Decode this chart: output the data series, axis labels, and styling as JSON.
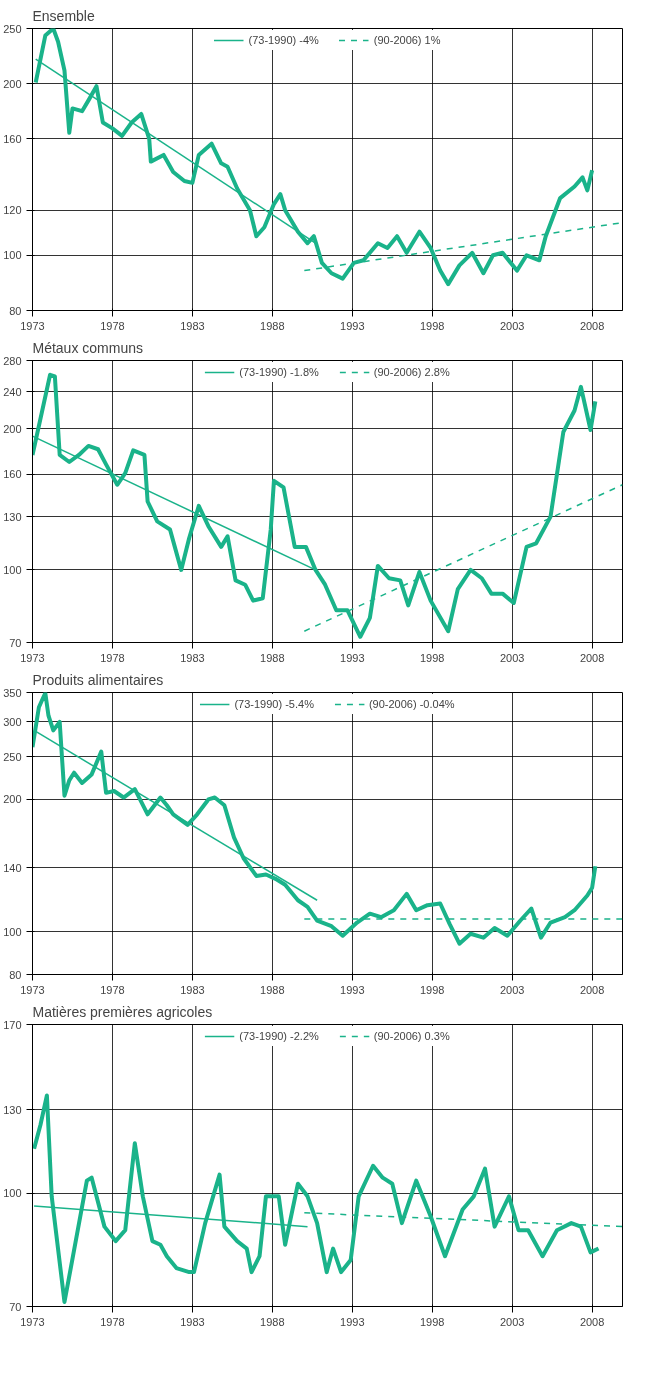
{
  "chart_data": [
    {
      "type": "line",
      "title": "Ensemble",
      "log": "y",
      "grid": true,
      "legend": "top",
      "marker": "none",
      "xlim": [
        1973,
        2009.9
      ],
      "xticks": [
        1973,
        1978,
        1983,
        1988,
        1993,
        1998,
        2003,
        2008
      ],
      "ylim": [
        80,
        250
      ],
      "yticks": [
        80,
        100,
        120,
        160,
        200,
        250
      ],
      "series": [
        {
          "color": "#1ab38a",
          "line_style": "solid",
          "x": [
            1973.2,
            1973.8,
            1974.3,
            1974.6,
            1975.0,
            1975.3,
            1975.5,
            1976.1,
            1976.5,
            1977.0,
            1977.4,
            1978.0,
            1978.6,
            1979.2,
            1979.8,
            1980.3,
            1980.4,
            1981.2,
            1981.8,
            1982.5,
            1983.0,
            1983.4,
            1984.2,
            1984.8,
            1985.2,
            1985.8,
            1986.6,
            1987.0,
            1987.5,
            1988.1,
            1988.5,
            1988.8,
            1989.6,
            1990.2,
            1990.6,
            1991.1,
            1991.7,
            1992.4,
            1993.1,
            1993.7,
            1994.6,
            1995.2,
            1995.8,
            1996.4,
            1997.2,
            1997.9,
            1998.5,
            1999.0,
            1999.7,
            2000.5,
            2001.2,
            2001.8,
            2002.4,
            2003.3,
            2003.9,
            2004.7,
            2005.1,
            2006.0,
            2006.9,
            2007.4,
            2007.7,
            2008.0
          ],
          "values": [
            201,
            243,
            250,
            237,
            211,
            164,
            181,
            179,
            187,
            198,
            171,
            167,
            162,
            171,
            177,
            160,
            146,
            150,
            140,
            135,
            134,
            150,
            157,
            145,
            143,
            131,
            120,
            108,
            112,
            123,
            128,
            120,
            110,
            105,
            108,
            97,
            93,
            91,
            97,
            98,
            105,
            103,
            108,
            101,
            110,
            103,
            94,
            89,
            96,
            101,
            93,
            100,
            101,
            94,
            100,
            98,
            108,
            126,
            132,
            137,
            130,
            141
          ]
        },
        {
          "name": "(73-1990) -4%",
          "color": "#1ab38a",
          "line_style": "solid",
          "x": [
            1973.2,
            1990.7
          ],
          "values": [
            221,
            105
          ]
        },
        {
          "name": "(90-2006) 1%",
          "color": "#1ab38a",
          "line_style": "dashed",
          "x": [
            1990.0,
            2009.8
          ],
          "values": [
            94,
            114
          ]
        }
      ]
    },
    {
      "type": "line",
      "title": "Métaux communs",
      "log": "y",
      "grid": true,
      "legend": "top",
      "marker": "none",
      "xlim": [
        1973,
        2009.9
      ],
      "xticks": [
        1973,
        1978,
        1983,
        1988,
        1993,
        1998,
        2003,
        2008
      ],
      "ylim": [
        70,
        280
      ],
      "yticks": [
        70,
        100,
        130,
        160,
        200,
        240,
        280
      ],
      "series": [
        {
          "color": "#1ab38a",
          "line_style": "solid",
          "x": [
            1973.0,
            1974.1,
            1974.4,
            1974.7,
            1975.3,
            1975.9,
            1976.5,
            1977.1,
            1977.6,
            1978.3,
            1978.8,
            1979.3,
            1980.0,
            1980.2,
            1980.8,
            1981.6,
            1981.9,
            1982.3,
            1982.8,
            1983.4,
            1984.0,
            1984.8,
            1985.2,
            1985.7,
            1986.3,
            1986.8,
            1987.4,
            1987.9,
            1988.1,
            1988.7,
            1989.4,
            1990.1,
            1990.7,
            1991.3,
            1992.0,
            1992.7,
            1993.5,
            1994.1,
            1994.6,
            1995.3,
            1996.0,
            1996.5,
            1997.2,
            1997.9,
            1999.0,
            1999.6,
            2000.4,
            2001.1,
            2001.7,
            2002.4,
            2003.1,
            2003.9,
            2004.5,
            2005.4,
            2006.2,
            2006.9,
            2007.3,
            2007.9,
            2008.2
          ],
          "values": [
            176,
            261,
            259,
            176,
            170,
            176,
            184,
            181,
            168,
            152,
            161,
            180,
            176,
            140,
            127,
            122,
            112,
            100,
            117,
            137,
            124,
            112,
            118,
            95,
            93,
            86,
            87,
            122,
            155,
            150,
            112,
            112,
            100,
            93,
            82,
            82,
            72,
            79,
            102,
            96,
            95,
            84,
            99,
            86,
            74,
            91,
            100,
            96,
            89,
            89,
            85,
            112,
            114,
            130,
            197,
            219,
            246,
            199,
            229
          ]
        },
        {
          "name": "(73-1990) -1.8%",
          "color": "#1ab38a",
          "line_style": "solid",
          "x": [
            1973.0,
            1990.7
          ],
          "values": [
            193,
            100
          ]
        },
        {
          "name": "(90-2006) 2.8%",
          "color": "#1ab38a",
          "line_style": "dashed",
          "x": [
            1990.0,
            2009.9
          ],
          "values": [
            74,
            152
          ]
        }
      ]
    },
    {
      "type": "line",
      "title": "Produits alimentaires",
      "log": "y",
      "grid": true,
      "legend": "top",
      "marker": "none",
      "xlim": [
        1973,
        2009.9
      ],
      "xticks": [
        1973,
        1978,
        1983,
        1988,
        1993,
        1998,
        2003,
        2008
      ],
      "ylim": [
        80,
        350
      ],
      "yticks": [
        80,
        100,
        140,
        200,
        250,
        300,
        350
      ],
      "series": [
        {
          "color": "#1ab38a",
          "line_style": "solid",
          "x": [
            1973.0,
            1973.4,
            1973.8,
            1974.0,
            1974.3,
            1974.7,
            1975.0,
            1975.3,
            1975.6,
            1976.1,
            1976.7,
            1977.3,
            1977.6,
            1978.1,
            1978.7,
            1979.4,
            1980.2,
            1981.0,
            1981.4,
            1981.8,
            1982.7,
            1983.3,
            1984.0,
            1984.4,
            1985.0,
            1985.6,
            1986.2,
            1987.0,
            1987.6,
            1988.2,
            1988.8,
            1989.6,
            1990.2,
            1990.8,
            1991.7,
            1992.4,
            1993.3,
            1994.1,
            1994.8,
            1995.6,
            1996.4,
            1997.0,
            1997.7,
            1998.5,
            1999.1,
            1999.7,
            2000.4,
            2001.2,
            2001.9,
            2002.7,
            2003.5,
            2004.2,
            2004.8,
            2005.4,
            2006.3,
            2006.9,
            2007.7,
            2008.0,
            2008.2
          ],
          "values": [
            263,
            324,
            349,
            310,
            287,
            300,
            204,
            221,
            230,
            218,
            228,
            257,
            207,
            209,
            202,
            211,
            185,
            202,
            194,
            185,
            175,
            185,
            200,
            202,
            194,
            164,
            147,
            134,
            135,
            132,
            128,
            118,
            114,
            106,
            103,
            98,
            105,
            110,
            108,
            112,
            122,
            112,
            115,
            116,
            104,
            94,
            99,
            97,
            102,
            98,
            106,
            113,
            97,
            105,
            108,
            112,
            121,
            126,
            141
          ]
        },
        {
          "name": "(73-1990) -5.4%",
          "color": "#1ab38a",
          "line_style": "solid",
          "x": [
            1973.1,
            1990.8
          ],
          "values": [
            287,
            118
          ]
        },
        {
          "name": "(90-2006) -0.04%",
          "color": "#1ab38a",
          "line_style": "dashed",
          "x": [
            1990.0,
            2009.9
          ],
          "values": [
            107,
            107
          ]
        }
      ]
    },
    {
      "type": "line",
      "title": "Matières premières agricoles",
      "log": "y",
      "grid": true,
      "legend": "top",
      "marker": "none",
      "xlim": [
        1973,
        2009.9
      ],
      "xticks": [
        1973,
        1978,
        1983,
        1988,
        1993,
        1998,
        2003,
        2008
      ],
      "ylim": [
        70,
        170
      ],
      "yticks": [
        70,
        100,
        130,
        170
      ],
      "series": [
        {
          "color": "#1ab38a",
          "line_style": "solid",
          "x": [
            1973.1,
            1973.5,
            1973.9,
            1974.2,
            1975.0,
            1975.3,
            1976.4,
            1976.7,
            1977.5,
            1978.2,
            1978.8,
            1979.4,
            1979.9,
            1980.5,
            1981.0,
            1981.4,
            1982.0,
            1982.8,
            1983.1,
            1983.8,
            1984.7,
            1985.0,
            1985.8,
            1986.4,
            1986.7,
            1987.2,
            1987.6,
            1988.4,
            1988.8,
            1989.6,
            1990.2,
            1990.8,
            1991.4,
            1991.8,
            1992.3,
            1992.9,
            1993.4,
            1994.3,
            1994.9,
            1995.5,
            1996.1,
            1997.0,
            1997.9,
            1998.8,
            1999.9,
            2000.6,
            2001.3,
            2001.9,
            2002.8,
            2003.4,
            2004.0,
            2004.9,
            2005.8,
            2006.7,
            2007.3,
            2007.9,
            2008.4
          ],
          "values": [
            115,
            124,
            136,
            99,
            71,
            77,
            104,
            105,
            90,
            86,
            89,
            117,
            99,
            86,
            85,
            82,
            79,
            78,
            78,
            91,
            106,
            90,
            86,
            84,
            78,
            82,
            99,
            99,
            85,
            103,
            99,
            91,
            78,
            84,
            78,
            81,
            99,
            109,
            105,
            103,
            91,
            104,
            93,
            82,
            95,
            99,
            108,
            90,
            99,
            89,
            89,
            82,
            89,
            91,
            90,
            83,
            84
          ]
        },
        {
          "name": "(73-1990) -2.2%",
          "color": "#1ab38a",
          "line_style": "solid",
          "x": [
            1973.1,
            1990.2
          ],
          "values": [
            96,
            90
          ]
        },
        {
          "name": "(90-2006) 0.3%",
          "color": "#1ab38a",
          "line_style": "dashed",
          "x": [
            1990.0,
            2009.9
          ],
          "values": [
            94,
            90
          ]
        }
      ]
    }
  ]
}
